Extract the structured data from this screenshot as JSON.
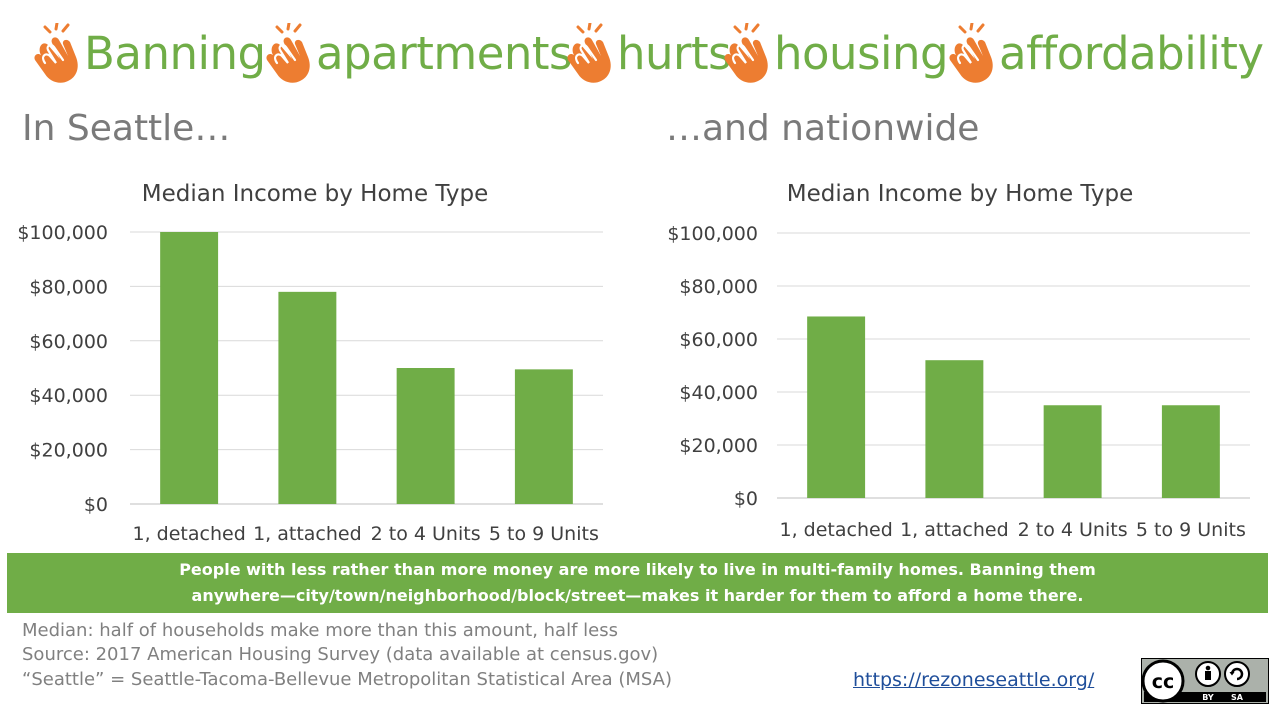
{
  "title": {
    "words": [
      "Banning",
      "apartments",
      "hurts",
      "housing",
      "affordability"
    ],
    "icon": "clapping-hands-icon",
    "accent_color": "#70AD47",
    "icon_color": "#ED7D31"
  },
  "left_subtitle": "In Seattle…",
  "right_subtitle": "…and nationwide",
  "chart_data": [
    {
      "type": "bar",
      "title": "Median Income by Home Type",
      "categories": [
        "1, detached",
        "1, attached",
        "2 to 4 Units",
        "5 to 9 Units"
      ],
      "values": [
        100000,
        78000,
        50000,
        49500
      ],
      "ylim": [
        0,
        100000
      ],
      "yticks": [
        "$0",
        "$20,000",
        "$40,000",
        "$60,000",
        "$80,000",
        "$100,000"
      ],
      "xlabel": "",
      "ylabel": "",
      "grid": true,
      "bar_color": "#70AD47"
    },
    {
      "type": "bar",
      "title": "Median Income by Home Type",
      "categories": [
        "1, detached",
        "1, attached",
        "2 to 4 Units",
        "5 to 9 Units"
      ],
      "values": [
        68500,
        52000,
        35000,
        35000
      ],
      "ylim": [
        0,
        100000
      ],
      "yticks": [
        "$0",
        "$20,000",
        "$40,000",
        "$60,000",
        "$80,000",
        "$100,000"
      ],
      "xlabel": "",
      "ylabel": "",
      "grid": true,
      "bar_color": "#70AD47"
    }
  ],
  "banner": {
    "text": "People with less rather than more money are more likely to live in multi-family homes. Banning them anywhere—city/town/neighborhood/block/street—makes  it harder for them to afford a home there.",
    "color": "#70AD47"
  },
  "notes": [
    "Median:  half of households make more than this amount, half less",
    "Source: 2017 American Housing Survey (data available at census.gov)",
    "“Seattle” = Seattle-Tacoma-Bellevue Metropolitan Statistical  Area  (MSA)"
  ],
  "link": "https://rezoneseattle.org/",
  "license_badge": {
    "icon": "creative-commons-by-sa-icon",
    "labels": [
      "BY",
      "SA"
    ]
  }
}
